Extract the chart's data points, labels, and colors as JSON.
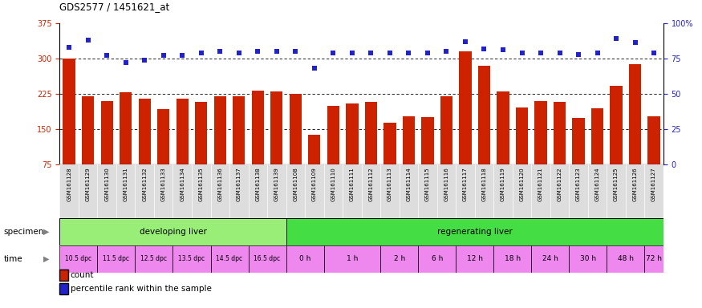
{
  "title": "GDS2577 / 1451621_at",
  "samples": [
    "GSM161128",
    "GSM161129",
    "GSM161130",
    "GSM161131",
    "GSM161132",
    "GSM161133",
    "GSM161134",
    "GSM161135",
    "GSM161136",
    "GSM161137",
    "GSM161138",
    "GSM161139",
    "GSM161108",
    "GSM161109",
    "GSM161110",
    "GSM161111",
    "GSM161112",
    "GSM161113",
    "GSM161114",
    "GSM161115",
    "GSM161116",
    "GSM161117",
    "GSM161118",
    "GSM161119",
    "GSM161120",
    "GSM161121",
    "GSM161122",
    "GSM161123",
    "GSM161124",
    "GSM161125",
    "GSM161126",
    "GSM161127"
  ],
  "bar_values": [
    300,
    220,
    210,
    228,
    215,
    192,
    215,
    208,
    220,
    220,
    232,
    230,
    225,
    138,
    200,
    205,
    208,
    163,
    178,
    175,
    220,
    315,
    285,
    230,
    196,
    210,
    208,
    173,
    195,
    242,
    288,
    178
  ],
  "percentile_values": [
    83,
    88,
    77,
    72,
    74,
    77,
    77,
    79,
    80,
    79,
    80,
    80,
    80,
    68,
    79,
    79,
    79,
    79,
    79,
    79,
    80,
    87,
    82,
    81,
    79,
    79,
    79,
    78,
    79,
    89,
    86,
    79
  ],
  "bar_color": "#CC2200",
  "percentile_color": "#2222CC",
  "ylim_left": [
    75,
    375
  ],
  "ylim_right": [
    0,
    100
  ],
  "yticks_left": [
    75,
    150,
    225,
    300,
    375
  ],
  "yticks_right": [
    0,
    25,
    50,
    75,
    100
  ],
  "grid_values": [
    150,
    225,
    300
  ],
  "specimen_groups": [
    {
      "label": "developing liver",
      "start": 0,
      "end": 12,
      "color": "#99EE77"
    },
    {
      "label": "regenerating liver",
      "start": 12,
      "end": 32,
      "color": "#44DD44"
    }
  ],
  "time_groups_dpc": [
    {
      "label": "10.5 dpc",
      "start": 0,
      "end": 2
    },
    {
      "label": "11.5 dpc",
      "start": 2,
      "end": 4
    },
    {
      "label": "12.5 dpc",
      "start": 4,
      "end": 6
    },
    {
      "label": "13.5 dpc",
      "start": 6,
      "end": 8
    },
    {
      "label": "14.5 dpc",
      "start": 8,
      "end": 10
    },
    {
      "label": "16.5 dpc",
      "start": 10,
      "end": 12
    }
  ],
  "time_groups_h": [
    {
      "label": "0 h",
      "start": 12,
      "end": 14
    },
    {
      "label": "1 h",
      "start": 14,
      "end": 17
    },
    {
      "label": "2 h",
      "start": 17,
      "end": 19
    },
    {
      "label": "6 h",
      "start": 19,
      "end": 21
    },
    {
      "label": "12 h",
      "start": 21,
      "end": 23
    },
    {
      "label": "18 h",
      "start": 23,
      "end": 25
    },
    {
      "label": "24 h",
      "start": 25,
      "end": 27
    },
    {
      "label": "30 h",
      "start": 27,
      "end": 29
    },
    {
      "label": "48 h",
      "start": 29,
      "end": 31
    },
    {
      "label": "72 h",
      "start": 31,
      "end": 32
    }
  ],
  "time_color_dpc": "#EE88EE",
  "time_color_h": "#EE88EE",
  "xtick_bg_color": "#DDDDDD"
}
